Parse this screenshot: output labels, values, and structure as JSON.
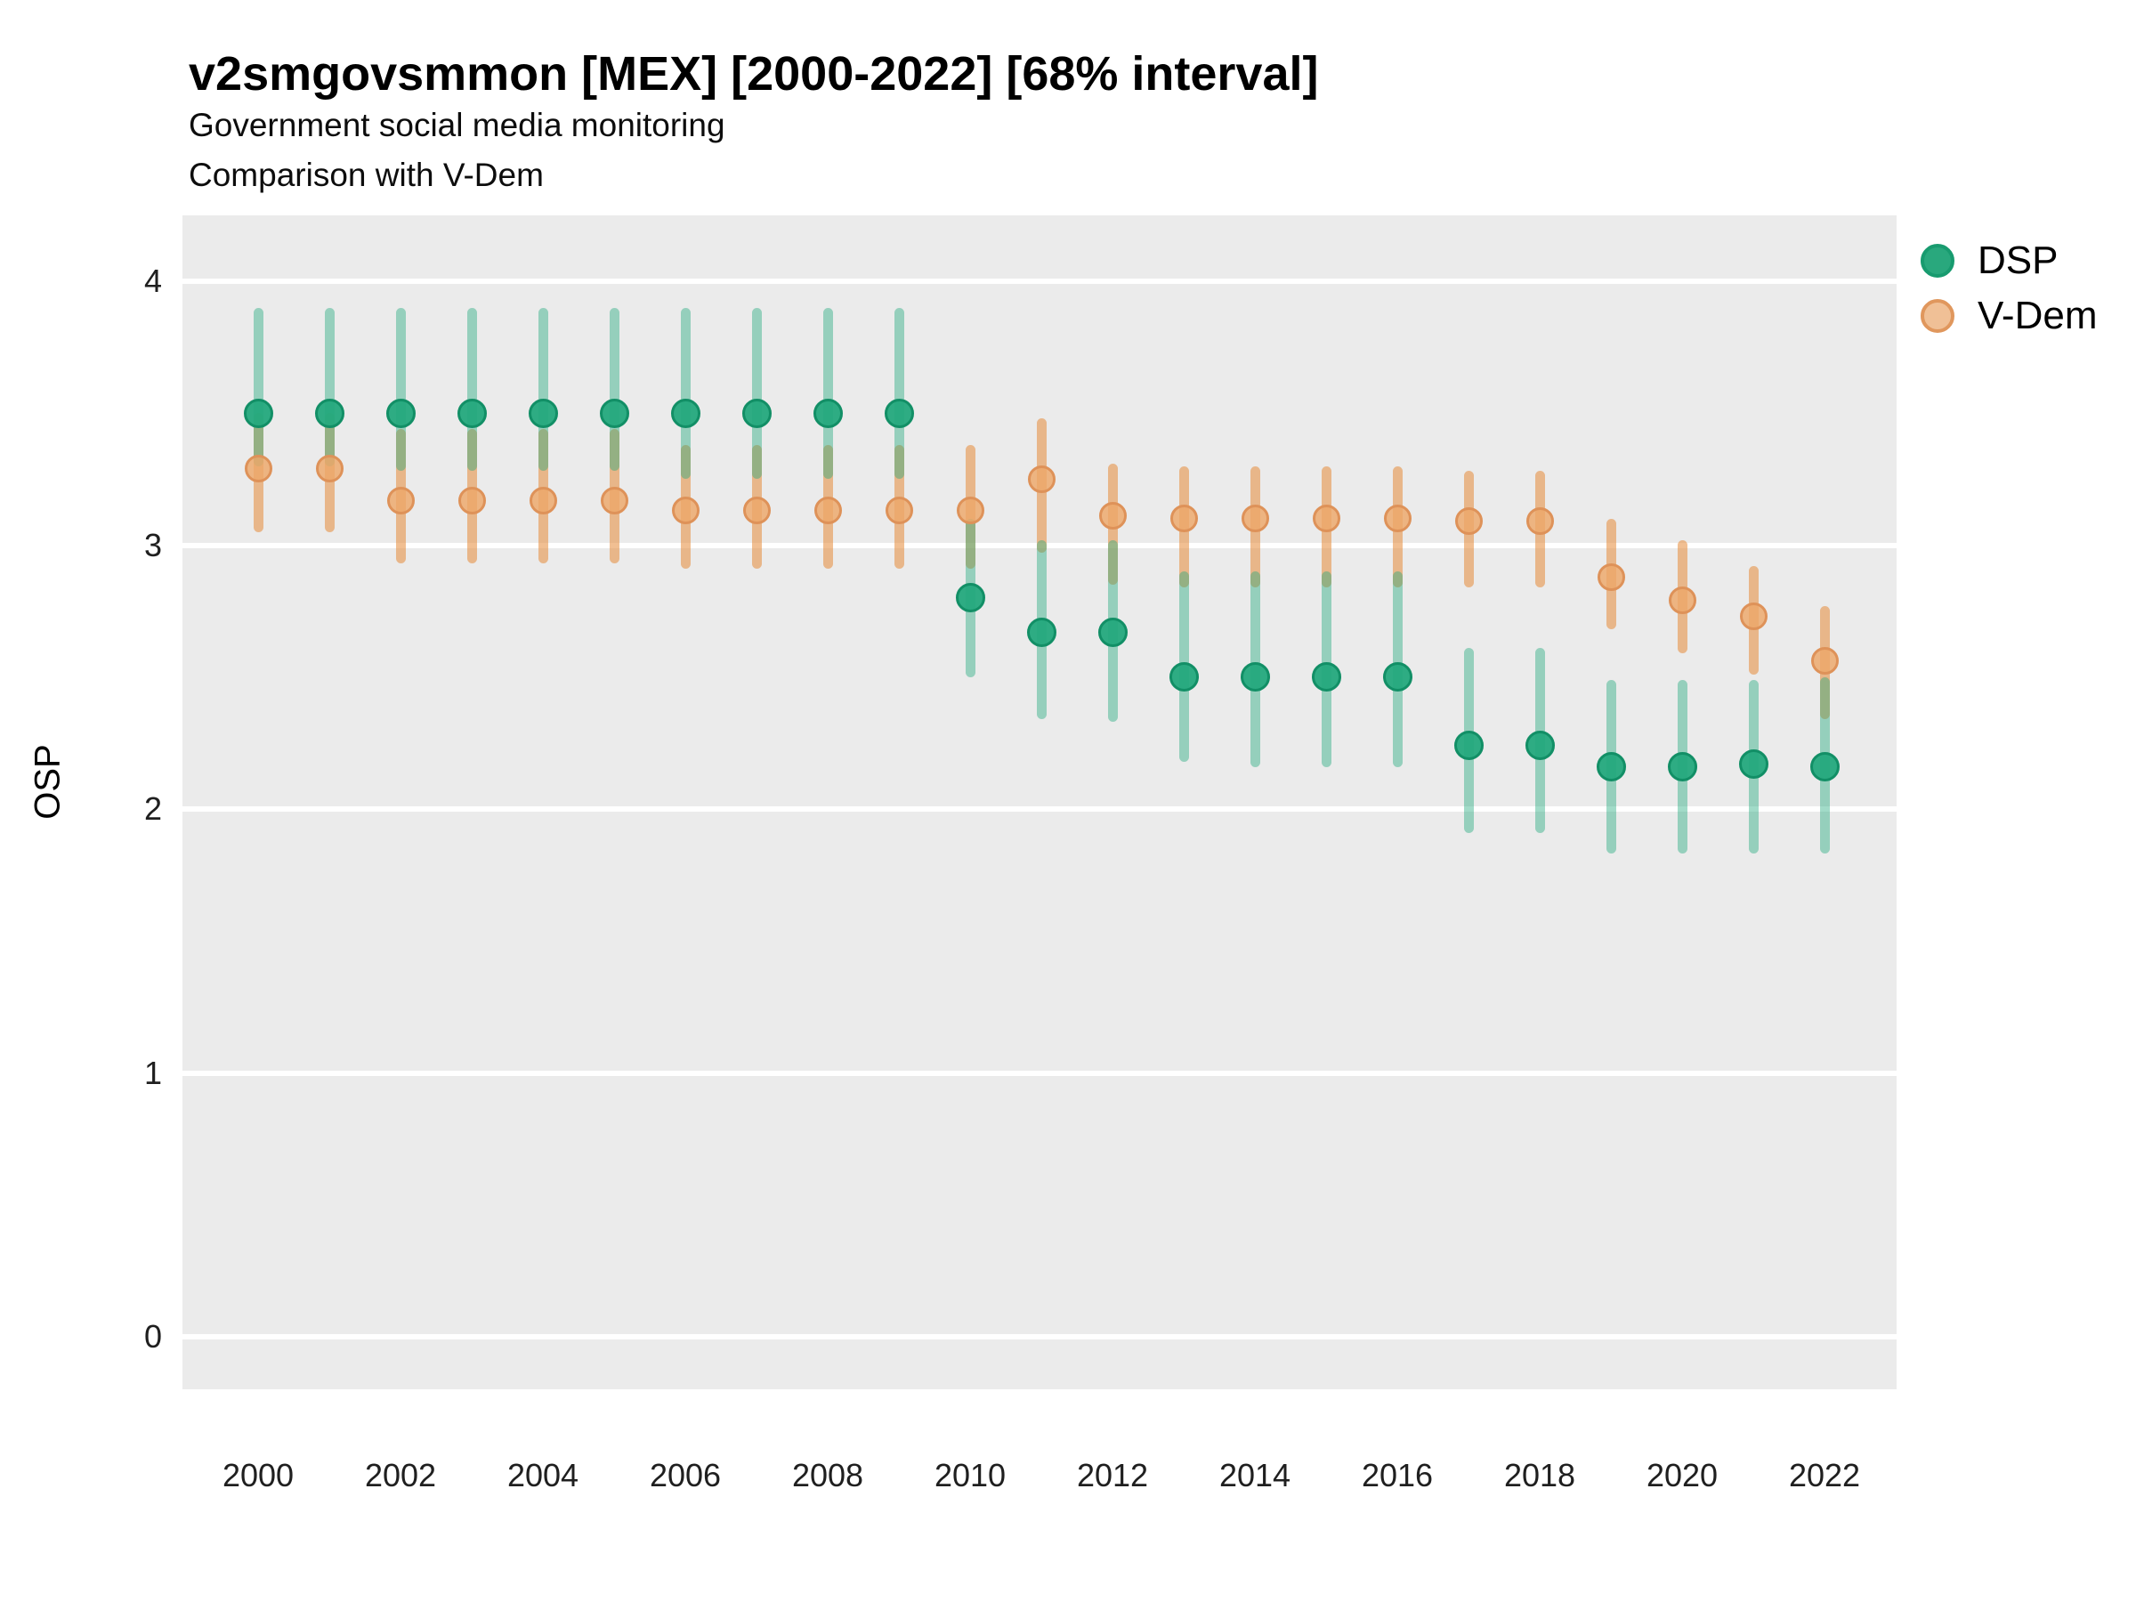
{
  "header": {
    "title": "v2smgovsmmon [MEX] [2000-2022] [68% interval]",
    "subtitle1": "Government social media monitoring",
    "subtitle2": "Comparison with V-Dem"
  },
  "axes": {
    "y_title": "OSP",
    "y_tick_labels": [
      "4",
      "3",
      "2",
      "1",
      "0"
    ],
    "x_tick_labels": [
      "2000",
      "2002",
      "2004",
      "2006",
      "2008",
      "2010",
      "2012",
      "2014",
      "2016",
      "2018",
      "2020",
      "2022"
    ]
  },
  "legend": {
    "items": [
      {
        "label": "DSP",
        "color": "#1fa97c"
      },
      {
        "label": "V-Dem",
        "color": "#f0c096"
      }
    ]
  },
  "colors": {
    "dsp_point_fill": "#22a87c",
    "dsp_point_border": "#128f66",
    "dsp_interval": "#1fa97c",
    "vdem_point_fill": "#eda96f",
    "vdem_point_border": "#de9259",
    "vdem_interval": "#e68a3c",
    "panel_background": "#ebebeb",
    "gridline": "#ffffff",
    "tick_text": "#1f1f1f"
  },
  "chart_data": {
    "type": "scatter",
    "title": "v2smgovsmmon [MEX] [2000-2022] [68% interval]",
    "subtitle": "Government social media monitoring — Comparison with V-Dem",
    "xlabel": "",
    "ylabel": "OSP",
    "interval": "68%",
    "grid": "major horizontal, white on grey panel",
    "legend_position": "right",
    "x": [
      2000,
      2001,
      2002,
      2003,
      2004,
      2005,
      2006,
      2007,
      2008,
      2009,
      2010,
      2011,
      2012,
      2013,
      2014,
      2015,
      2016,
      2017,
      2018,
      2019,
      2020,
      2021,
      2022
    ],
    "x_ticks": [
      2000,
      2002,
      2004,
      2006,
      2008,
      2010,
      2012,
      2014,
      2016,
      2018,
      2020,
      2022
    ],
    "y_ticks": [
      0,
      1,
      2,
      3,
      4
    ],
    "ylim": [
      -0.26,
      4.26
    ],
    "xlim": [
      1999,
      2023
    ],
    "series": [
      {
        "name": "DSP",
        "y": [
          3.5,
          3.5,
          3.5,
          3.5,
          3.5,
          3.5,
          3.5,
          3.5,
          3.5,
          3.5,
          2.8,
          2.67,
          2.67,
          2.5,
          2.5,
          2.5,
          2.5,
          2.24,
          2.24,
          2.16,
          2.16,
          2.17,
          2.16
        ],
        "lo": [
          3.3,
          3.3,
          3.28,
          3.28,
          3.28,
          3.28,
          3.25,
          3.25,
          3.25,
          3.25,
          2.5,
          2.34,
          2.33,
          2.18,
          2.16,
          2.16,
          2.16,
          1.91,
          1.91,
          1.83,
          1.83,
          1.83,
          1.83
        ],
        "hi": [
          3.9,
          3.9,
          3.9,
          3.9,
          3.9,
          3.9,
          3.9,
          3.9,
          3.9,
          3.9,
          3.1,
          3.02,
          3.02,
          2.9,
          2.9,
          2.9,
          2.9,
          2.61,
          2.61,
          2.49,
          2.49,
          2.49,
          2.5
        ]
      },
      {
        "name": "V-Dem",
        "y": [
          3.29,
          3.29,
          3.17,
          3.17,
          3.17,
          3.17,
          3.13,
          3.13,
          3.13,
          3.13,
          3.13,
          3.25,
          3.11,
          3.1,
          3.1,
          3.1,
          3.1,
          3.09,
          3.09,
          2.88,
          2.79,
          2.73,
          2.56
        ],
        "lo": [
          3.05,
          3.05,
          2.93,
          2.93,
          2.93,
          2.93,
          2.91,
          2.91,
          2.91,
          2.91,
          2.91,
          2.97,
          2.85,
          2.84,
          2.84,
          2.84,
          2.84,
          2.84,
          2.84,
          2.68,
          2.59,
          2.51,
          2.34
        ],
        "hi": [
          3.5,
          3.5,
          3.44,
          3.44,
          3.44,
          3.44,
          3.38,
          3.38,
          3.38,
          3.38,
          3.38,
          3.48,
          3.31,
          3.3,
          3.3,
          3.3,
          3.3,
          3.28,
          3.28,
          3.1,
          3.02,
          2.92,
          2.77
        ]
      }
    ]
  }
}
